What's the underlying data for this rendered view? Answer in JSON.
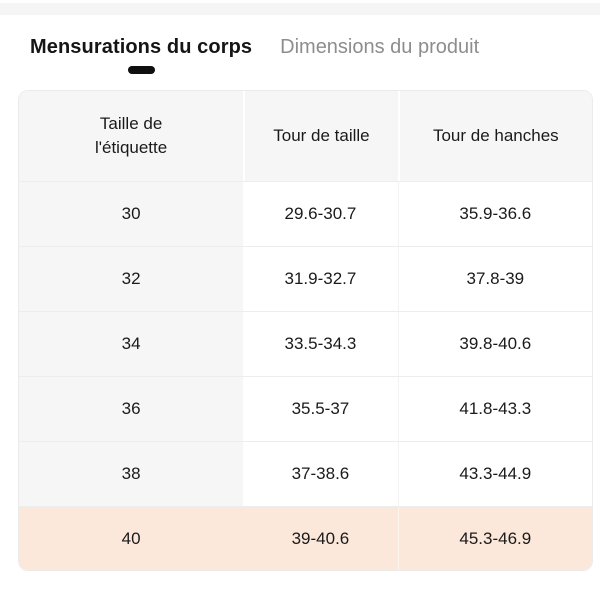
{
  "tabs": {
    "body_measurements": {
      "label": "Mensurations du corps",
      "active": true
    },
    "product_dimensions": {
      "label": "Dimensions du produit",
      "active": false
    }
  },
  "table": {
    "columns": {
      "label_size": "Taille de l'étiquette",
      "waist": "Tour de taille",
      "hips": "Tour de hanches"
    },
    "rows": [
      {
        "size": "30",
        "waist": "29.6-30.7",
        "hips": "35.9-36.6",
        "state": "default"
      },
      {
        "size": "32",
        "waist": "31.9-32.7",
        "hips": "37.8-39",
        "state": "default"
      },
      {
        "size": "34",
        "waist": "33.5-34.3",
        "hips": "39.8-40.6",
        "state": "default"
      },
      {
        "size": "36",
        "waist": "35.5-37",
        "hips": "41.8-43.3",
        "state": "default"
      },
      {
        "size": "38",
        "waist": "37-38.6",
        "hips": "43.3-44.9",
        "state": "default"
      },
      {
        "size": "40",
        "waist": "39-40.6",
        "hips": "45.3-46.9",
        "state": "highlighted"
      }
    ]
  },
  "colors": {
    "highlight_row": "#fce8da",
    "header_bg": "#f6f6f6",
    "active_tab_text": "#151515",
    "inactive_tab_text": "#8d8d8d",
    "indicator": "#0f0f0f",
    "top_strip": "#f5f5f5"
  }
}
